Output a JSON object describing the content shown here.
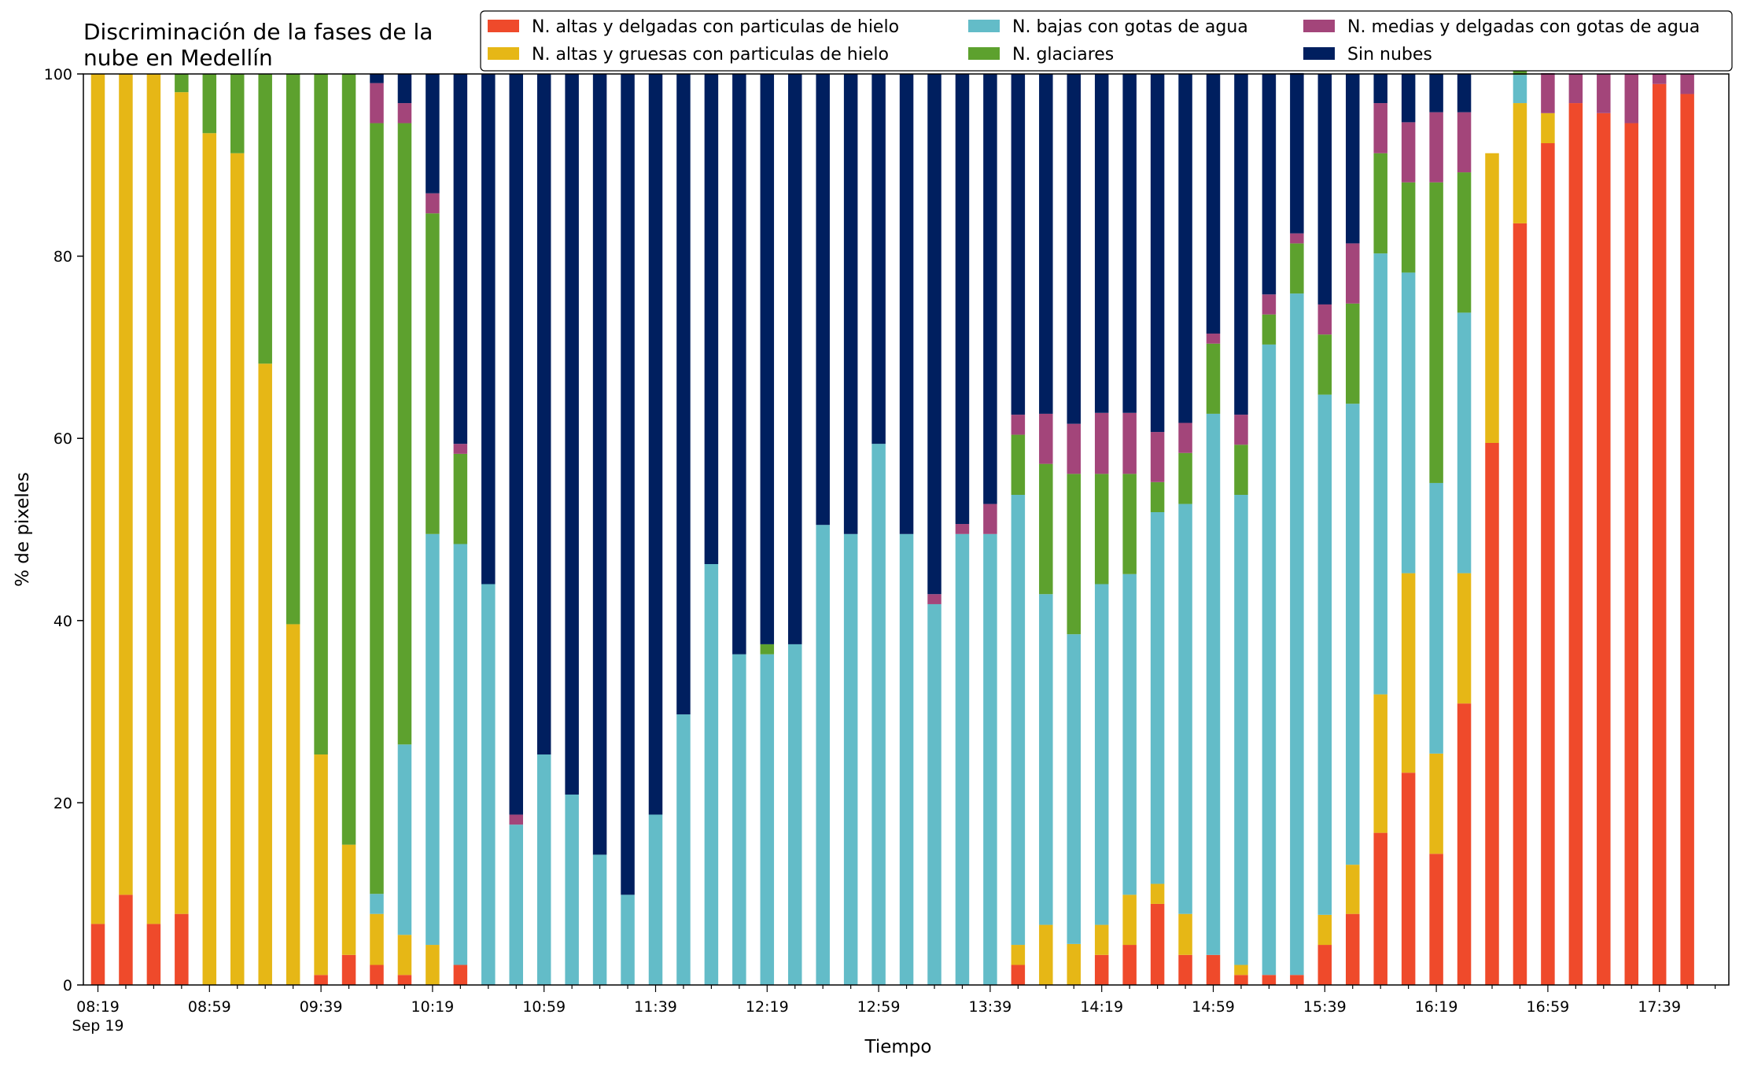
{
  "chart_data": {
    "type": "bar",
    "stacked": true,
    "title": "Discriminación de la fases de la\nnube en Medellín",
    "xlabel": "Tiempo",
    "ylabel": "% de pixeles",
    "ylim": [
      0,
      100
    ],
    "yticks": [
      0,
      20,
      40,
      60,
      80,
      100
    ],
    "grid": false,
    "legend_position": "top-right",
    "x_tick_labels": [
      {
        "index": 0,
        "label": "08:19",
        "sublabel": "Sep 19"
      },
      {
        "index": 4,
        "label": "08:59"
      },
      {
        "index": 8,
        "label": "09:39"
      },
      {
        "index": 12,
        "label": "10:19"
      },
      {
        "index": 16,
        "label": "10:59"
      },
      {
        "index": 20,
        "label": "11:39"
      },
      {
        "index": 24,
        "label": "12:19"
      },
      {
        "index": 28,
        "label": "12:59"
      },
      {
        "index": 32,
        "label": "13:39"
      },
      {
        "index": 36,
        "label": "14:19"
      },
      {
        "index": 40,
        "label": "14:59"
      },
      {
        "index": 44,
        "label": "15:39"
      },
      {
        "index": 48,
        "label": "16:19"
      },
      {
        "index": 52,
        "label": "16:59"
      },
      {
        "index": 56,
        "label": "17:39"
      }
    ],
    "categories": [
      "08:19",
      "08:29",
      "08:39",
      "08:49",
      "08:59",
      "09:09",
      "09:19",
      "09:29",
      "09:39",
      "09:49",
      "09:59",
      "10:09",
      "10:19",
      "10:29",
      "10:39",
      "10:49",
      "10:59",
      "11:09",
      "11:19",
      "11:29",
      "11:39",
      "11:49",
      "11:59",
      "12:09",
      "12:19",
      "12:29",
      "12:39",
      "12:49",
      "12:59",
      "13:09",
      "13:19",
      "13:29",
      "13:39",
      "13:49",
      "13:59",
      "14:09",
      "14:19",
      "14:29",
      "14:39",
      "14:49",
      "14:59",
      "15:09",
      "15:19",
      "15:29",
      "15:39",
      "15:49",
      "15:59",
      "16:09",
      "16:19",
      "16:29",
      "16:39",
      "16:49",
      "16:59",
      "17:09",
      "17:19",
      "17:29",
      "17:39",
      "17:49"
    ],
    "series": [
      {
        "name": "N. altas y delgadas con particulas de hielo",
        "color": "#ef4a2b",
        "values": [
          6.7,
          9.9,
          6.7,
          7.8,
          0,
          0,
          0,
          0,
          1.1,
          3.3,
          2.2,
          1.1,
          0,
          2.2,
          0,
          0,
          0,
          0,
          0,
          0,
          0,
          0,
          0,
          0,
          0,
          0,
          0,
          0,
          0,
          0,
          0,
          0,
          0,
          2.2,
          0,
          0,
          3.3,
          4.4,
          8.9,
          3.3,
          3.3,
          1.1,
          1.1,
          1.1,
          4.4,
          7.8,
          16.7,
          23.3,
          14.4,
          30.9,
          59.5,
          83.6,
          92.4,
          96.8,
          95.7,
          94.6,
          98.9,
          97.8
        ]
      },
      {
        "name": "N. altas y gruesas con particulas de hielo",
        "color": "#e6b716",
        "values": [
          93.3,
          90.1,
          93.3,
          90.2,
          93.5,
          91.3,
          68.2,
          39.6,
          24.2,
          12.1,
          5.6,
          4.4,
          4.4,
          0,
          0,
          0,
          0,
          0,
          0,
          0,
          0,
          0,
          0,
          0,
          0,
          0,
          0,
          0,
          0,
          0,
          0,
          0,
          0,
          2.2,
          6.6,
          4.5,
          3.3,
          5.5,
          2.2,
          4.5,
          0,
          1.1,
          0,
          0,
          3.3,
          5.4,
          15.2,
          21.9,
          11.0,
          14.3,
          31.8,
          13.2,
          3.3,
          0,
          0,
          0,
          0,
          0
        ]
      },
      {
        "name": "N. bajas con gotas de agua",
        "color": "#63bcc8",
        "values": [
          0,
          0,
          0,
          0,
          0,
          0,
          0,
          0,
          0,
          0,
          2.2,
          20.9,
          45.1,
          46.2,
          44.0,
          17.6,
          25.3,
          20.9,
          14.3,
          9.9,
          18.7,
          29.7,
          46.2,
          36.3,
          36.3,
          37.4,
          50.5,
          49.5,
          59.4,
          49.5,
          41.8,
          49.5,
          49.5,
          49.4,
          36.3,
          34.0,
          37.4,
          35.2,
          40.8,
          45.0,
          59.4,
          51.6,
          69.2,
          74.8,
          57.1,
          50.6,
          48.4,
          33.0,
          29.7,
          28.6,
          0,
          3.1,
          0,
          0,
          0,
          0,
          0,
          0
        ]
      },
      {
        "name": "N. glaciares",
        "color": "#5da12e",
        "values": [
          0,
          0,
          0,
          2.0,
          6.5,
          8.7,
          31.8,
          60.4,
          74.7,
          84.6,
          84.6,
          68.2,
          35.2,
          9.9,
          0,
          0,
          0,
          0,
          0,
          0,
          0,
          0,
          0,
          0,
          1.1,
          0,
          0,
          0,
          0,
          0,
          0,
          0,
          0,
          6.6,
          14.3,
          17.6,
          12.1,
          11.0,
          3.3,
          5.6,
          7.7,
          5.5,
          3.3,
          5.5,
          6.6,
          11.0,
          11.0,
          9.9,
          33.0,
          15.4,
          0,
          4.4,
          0,
          0,
          0,
          0,
          0,
          0
        ]
      },
      {
        "name": "N. medias y delgadas con gotas de agua",
        "color": "#a3457a",
        "values": [
          0,
          0,
          0,
          0,
          0,
          0,
          0,
          0,
          0,
          0,
          4.4,
          2.2,
          2.2,
          1.1,
          0,
          1.1,
          0,
          0,
          0,
          0,
          0,
          0,
          0,
          0,
          0,
          0,
          0,
          0,
          0,
          0,
          1.1,
          1.1,
          3.3,
          2.2,
          5.5,
          5.5,
          6.7,
          6.7,
          5.5,
          3.3,
          1.1,
          3.3,
          2.2,
          1.1,
          3.3,
          6.6,
          5.5,
          6.6,
          7.7,
          6.6,
          0,
          1.1,
          4.4,
          3.2,
          4.3,
          5.4,
          1.1,
          2.2
        ]
      },
      {
        "name": "Sin nubes",
        "color": "#001f5f",
        "values": [
          0,
          0,
          0,
          0,
          0,
          0,
          0,
          0,
          0,
          0,
          1.0,
          3.2,
          13.1,
          40.6,
          56.0,
          81.3,
          74.7,
          79.1,
          85.7,
          90.1,
          81.3,
          70.3,
          53.8,
          63.7,
          62.6,
          62.6,
          49.5,
          50.5,
          40.6,
          50.5,
          57.1,
          49.4,
          47.2,
          37.4,
          37.3,
          38.4,
          37.2,
          37.2,
          39.3,
          38.3,
          28.5,
          37.4,
          24.2,
          17.6,
          25.3,
          18.6,
          3.2,
          5.3,
          4.2,
          4.2,
          0,
          0,
          0,
          0,
          0,
          0,
          0,
          0
        ]
      }
    ]
  }
}
